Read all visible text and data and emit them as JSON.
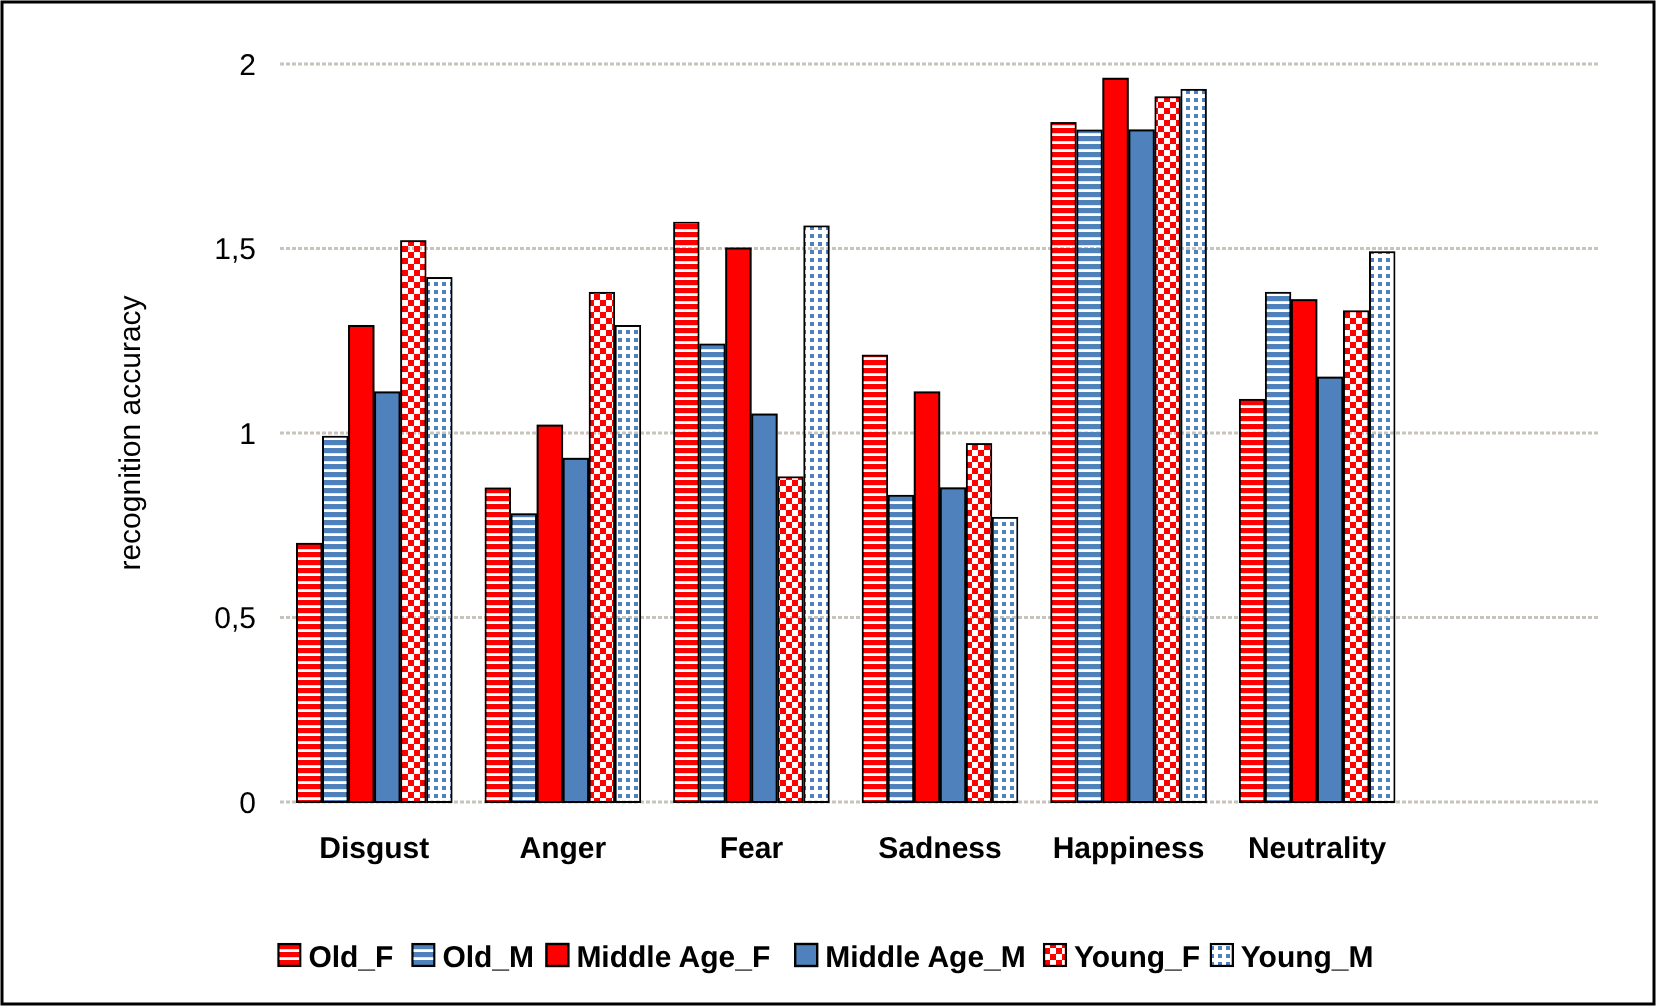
{
  "chart_data": {
    "type": "bar",
    "ylabel": "recognition accuracy",
    "categories": [
      "Disgust",
      "Anger",
      "Fear",
      "Sadness",
      "Happiness",
      "Neutrality",
      null
    ],
    "series": [
      {
        "name": "Old_F",
        "color": "#ff0000",
        "values": [
          0.7,
          0.85,
          1.57,
          1.21,
          1.84,
          1.09,
          null
        ]
      },
      {
        "name": "Old_M",
        "color": "#4f81bd",
        "values": [
          0.99,
          0.78,
          1.24,
          0.83,
          1.82,
          1.38,
          null
        ]
      },
      {
        "name": "Middle Age_F",
        "color": "#ff0000",
        "values": [
          1.29,
          1.02,
          1.5,
          1.11,
          1.96,
          1.36,
          null
        ]
      },
      {
        "name": "Middle Age_M",
        "color": "#4f81bd",
        "values": [
          1.11,
          0.93,
          1.05,
          0.85,
          1.82,
          1.15,
          null
        ]
      },
      {
        "name": "Young_F",
        "color": "#ff0000",
        "values": [
          1.52,
          1.38,
          0.88,
          0.97,
          1.91,
          1.33,
          null
        ]
      },
      {
        "name": "Young_M",
        "color": "#4f81bd",
        "values": [
          1.42,
          1.29,
          1.56,
          0.77,
          1.93,
          1.49,
          null
        ]
      }
    ],
    "ylim": [
      0,
      2
    ],
    "yticks": [
      0,
      {
        "value": 0.5,
        "label": "0,5"
      },
      1,
      {
        "value": 1.5,
        "label": "1,5"
      },
      2
    ],
    "grid": "y",
    "legend": "bottom"
  }
}
